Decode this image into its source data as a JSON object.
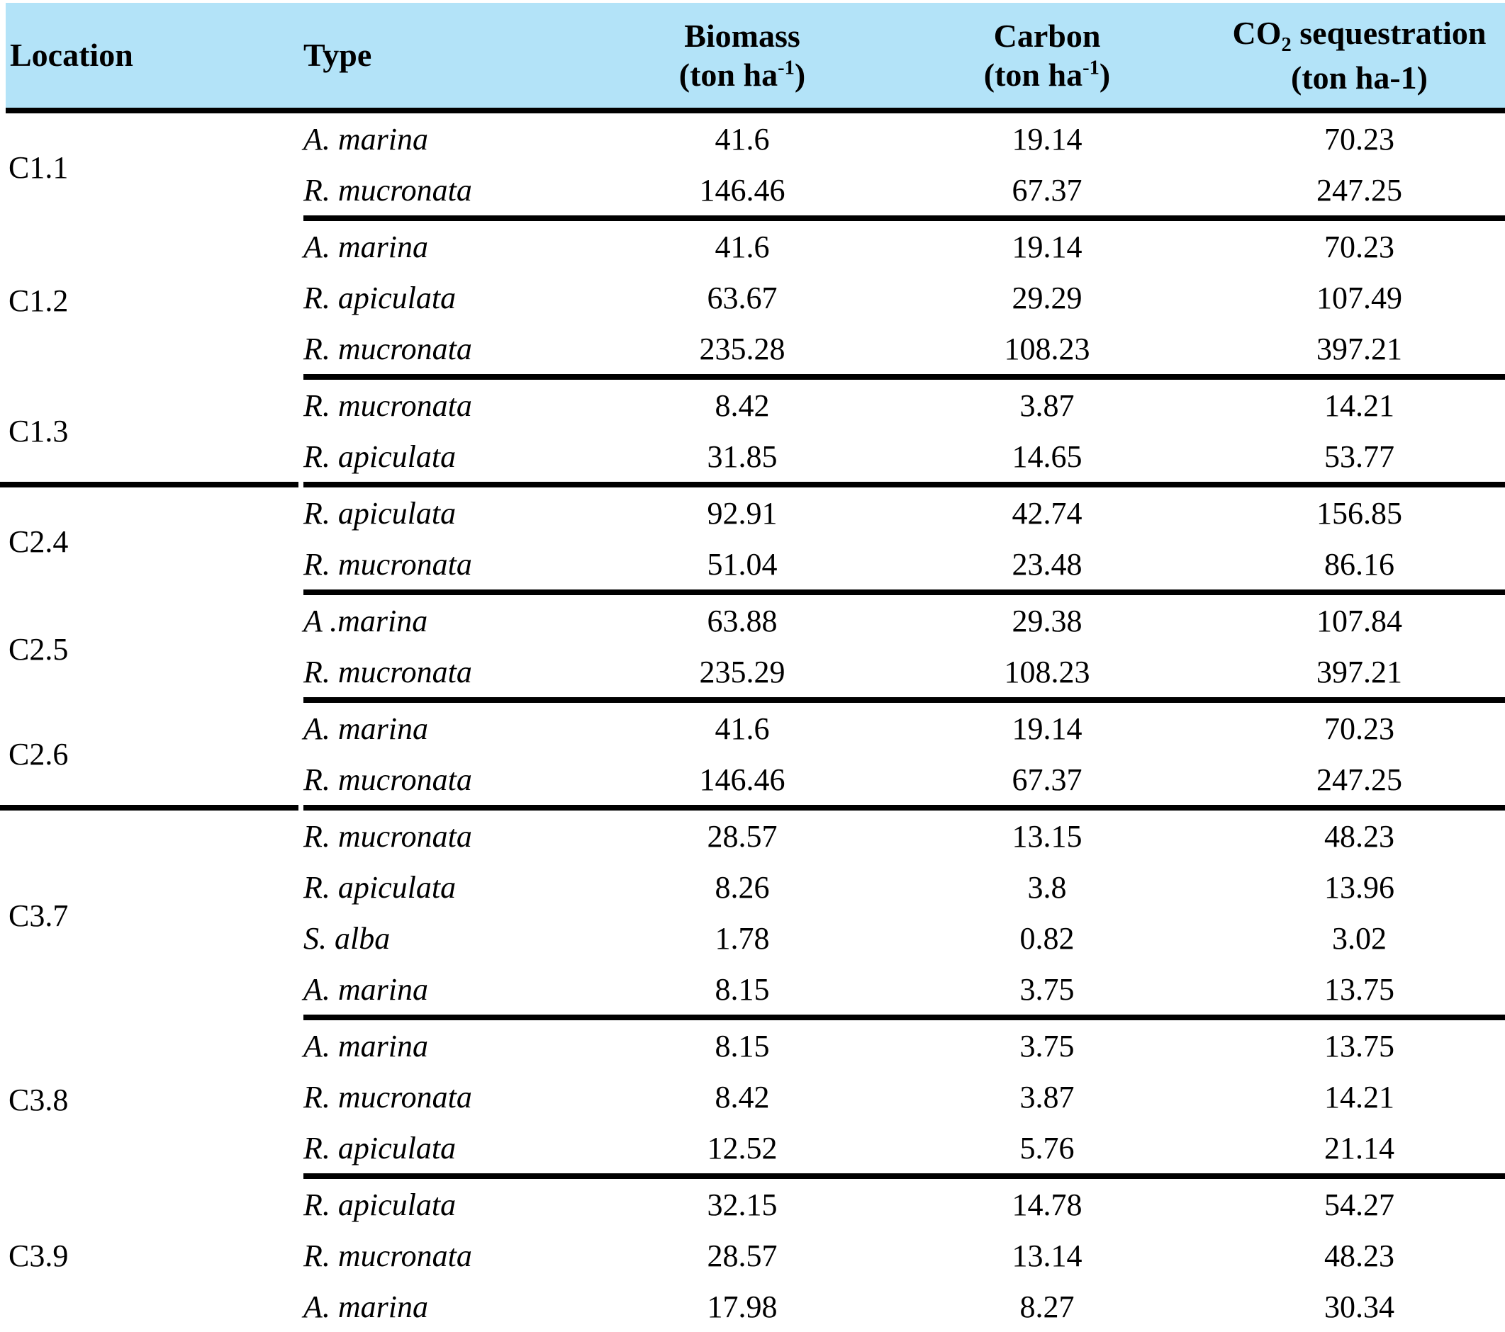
{
  "colors": {
    "header_bg": "#b3e3f8",
    "rule": "#000000",
    "text": "#000000",
    "background": "#ffffff"
  },
  "table": {
    "header": {
      "location": "Location",
      "type": "Type",
      "biomass": {
        "name": "Biomass",
        "unit_prefix": "(ton ha",
        "unit_exp": "-1",
        "unit_suffix": ")"
      },
      "carbon": {
        "name": "Carbon",
        "unit_prefix": "(ton ha",
        "unit_exp": "-1",
        "unit_suffix": ")"
      },
      "co2": {
        "formula_base": "CO",
        "formula_sub": "2",
        "name_rest": " sequestration",
        "unit": "(ton ha-1)"
      }
    },
    "groups": [
      {
        "location": "C1.1",
        "separator": "partial",
        "rows": [
          {
            "type": "A. marina",
            "biomass": "41.6",
            "carbon": "19.14",
            "co2": "70.23"
          },
          {
            "type": "R. mucronata",
            "biomass": "146.46",
            "carbon": "67.37",
            "co2": "247.25"
          }
        ]
      },
      {
        "location": "C1.2",
        "separator": "partial",
        "rows": [
          {
            "type": "A. marina",
            "biomass": "41.6",
            "carbon": "19.14",
            "co2": "70.23"
          },
          {
            "type": "R. apiculata",
            "biomass": "63.67",
            "carbon": "29.29",
            "co2": "107.49"
          },
          {
            "type": "R. mucronata",
            "biomass": "235.28",
            "carbon": "108.23",
            "co2": "397.21"
          }
        ]
      },
      {
        "location": "C1.3",
        "separator": "full",
        "rows": [
          {
            "type": "R. mucronata",
            "biomass": "8.42",
            "carbon": "3.87",
            "co2": "14.21"
          },
          {
            "type": "R. apiculata",
            "biomass": "31.85",
            "carbon": "14.65",
            "co2": "53.77"
          }
        ]
      },
      {
        "location": "C2.4",
        "separator": "partial",
        "rows": [
          {
            "type": "R. apiculata",
            "biomass": "92.91",
            "carbon": "42.74",
            "co2": "156.85"
          },
          {
            "type": "R. mucronata",
            "biomass": "51.04",
            "carbon": "23.48",
            "co2": "86.16"
          }
        ]
      },
      {
        "location": "C2.5",
        "separator": "partial",
        "rows": [
          {
            "type": "A .marina",
            "biomass": "63.88",
            "carbon": "29.38",
            "co2": "107.84"
          },
          {
            "type": "R. mucronata",
            "biomass": "235.29",
            "carbon": "108.23",
            "co2": "397.21"
          }
        ]
      },
      {
        "location": "C2.6",
        "separator": "full",
        "rows": [
          {
            "type": "A. marina",
            "biomass": "41.6",
            "carbon": "19.14",
            "co2": "70.23"
          },
          {
            "type": "R. mucronata",
            "biomass": "146.46",
            "carbon": "67.37",
            "co2": "247.25"
          }
        ]
      },
      {
        "location": "C3.7",
        "separator": "partial",
        "rows": [
          {
            "type": "R. mucronata",
            "biomass": "28.57",
            "carbon": "13.15",
            "co2": "48.23"
          },
          {
            "type": "R. apiculata",
            "biomass": "8.26",
            "carbon": "3.8",
            "co2": "13.96"
          },
          {
            "type": "S. alba",
            "biomass": "1.78",
            "carbon": "0.82",
            "co2": "3.02"
          },
          {
            "type": "A. marina",
            "biomass": "8.15",
            "carbon": "3.75",
            "co2": "13.75"
          }
        ]
      },
      {
        "location": "C3.8",
        "separator": "partial",
        "rows": [
          {
            "type": "A. marina",
            "biomass": "8.15",
            "carbon": "3.75",
            "co2": "13.75"
          },
          {
            "type": "R. mucronata",
            "biomass": "8.42",
            "carbon": "3.87",
            "co2": "14.21"
          },
          {
            "type": "R. apiculata",
            "biomass": "12.52",
            "carbon": "5.76",
            "co2": "21.14"
          }
        ]
      },
      {
        "location": "C3.9",
        "separator": "none",
        "rows": [
          {
            "type": "R. apiculata",
            "biomass": "32.15",
            "carbon": "14.78",
            "co2": "54.27"
          },
          {
            "type": "R. mucronata",
            "biomass": "28.57",
            "carbon": "13.14",
            "co2": "48.23"
          },
          {
            "type": "A. marina",
            "biomass": "17.98",
            "carbon": "8.27",
            "co2": "30.34"
          }
        ]
      }
    ]
  }
}
